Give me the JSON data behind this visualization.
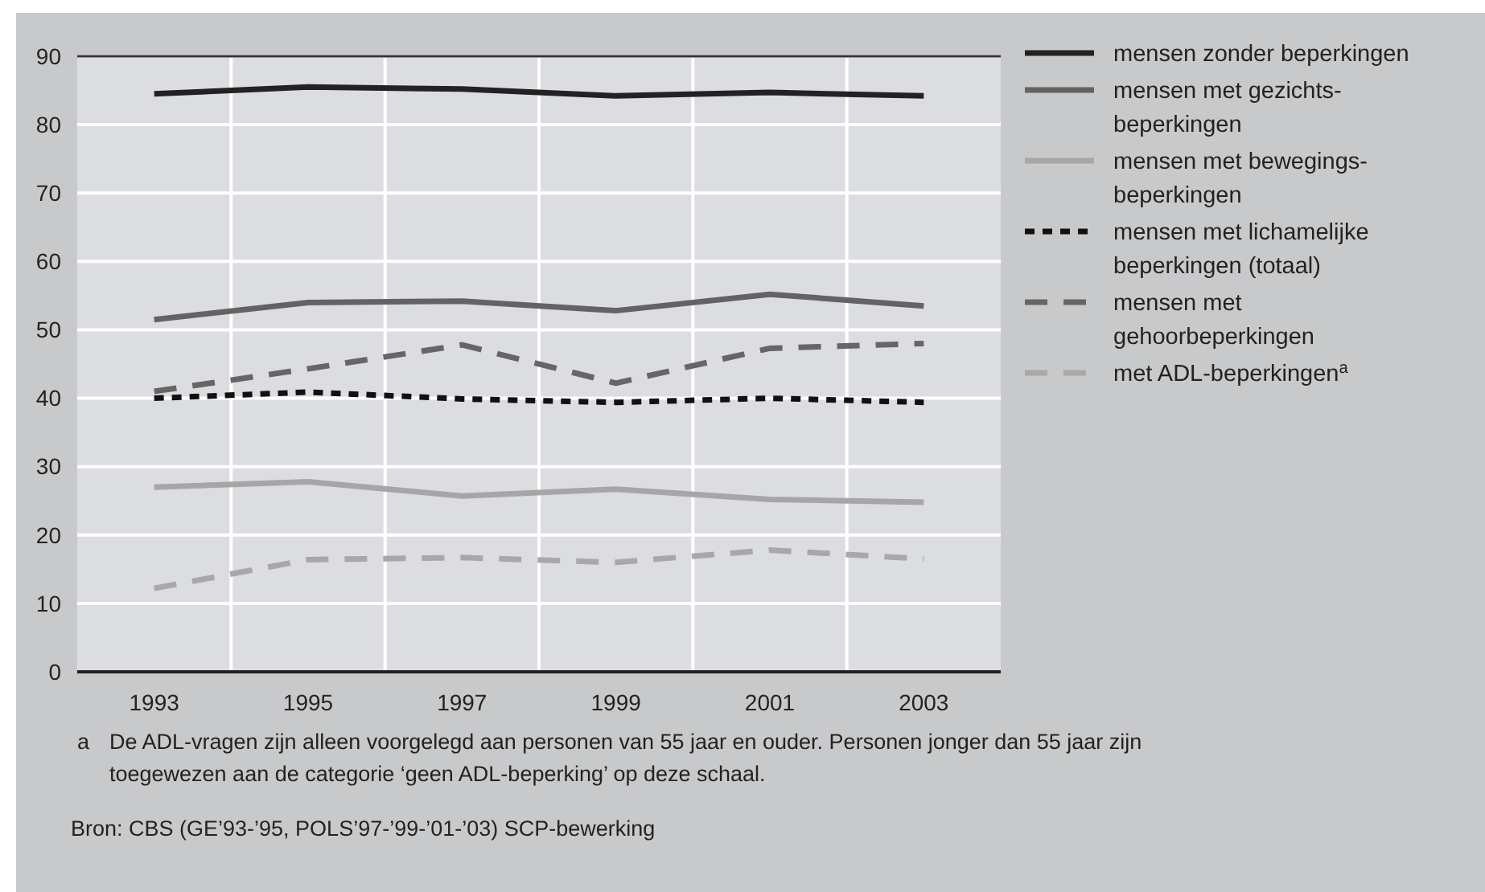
{
  "chart_data": {
    "type": "line",
    "categories": [
      "1993",
      "1995",
      "1997",
      "1999",
      "2001",
      "2003"
    ],
    "ylim": [
      0,
      90
    ],
    "yticks": [
      0,
      10,
      20,
      30,
      40,
      50,
      60,
      70,
      80,
      90
    ],
    "grid": true,
    "legend": "right",
    "series": [
      {
        "name": "mensen zonder beperkingen",
        "color": "#222222",
        "line_style": "solid",
        "values": [
          84.5,
          85.5,
          85.2,
          84.2,
          84.7,
          84.2
        ]
      },
      {
        "name": "mensen met gezichts-\nbeperkingen",
        "color": "#636363",
        "line_style": "solid",
        "values": [
          51.5,
          54,
          54.2,
          52.8,
          55.2,
          53.5
        ]
      },
      {
        "name": "mensen met bewegings-\nbeperkingen",
        "color": "#a6a6a6",
        "line_style": "solid",
        "values": [
          27,
          27.8,
          25.7,
          26.7,
          25.2,
          24.8
        ]
      },
      {
        "name": "mensen met lichamelijke\nbeperkingen (totaal)",
        "color": "#111111",
        "line_style": "dotted",
        "values": [
          40,
          40.9,
          39.9,
          39.4,
          40,
          39.4
        ]
      },
      {
        "name": "mensen met\ngehoorbeperkingen",
        "color": "#666666",
        "line_style": "dashed",
        "values": [
          41,
          44.3,
          47.8,
          42.2,
          47.3,
          48
        ]
      },
      {
        "name": "met ADL-beperkingen$^{a}$",
        "color": "#a8a8a8",
        "line_style": "dashed",
        "values": [
          12.2,
          16.4,
          16.7,
          16,
          17.8,
          16.5
        ]
      }
    ],
    "annotations": [
      "a\tDe ADL-vragen zijn alleen voorgelegd aan personen van 55 jaar en ouder. Personen jonger dan 55 jaar zijn\ntoegewezen aan de categorie ‘geen ADL-beperking’ op deze schaal.",
      "Bron: CBS (GE’93-’95, POLS’97-’99-’01-’03) SCP-bewerking"
    ]
  }
}
